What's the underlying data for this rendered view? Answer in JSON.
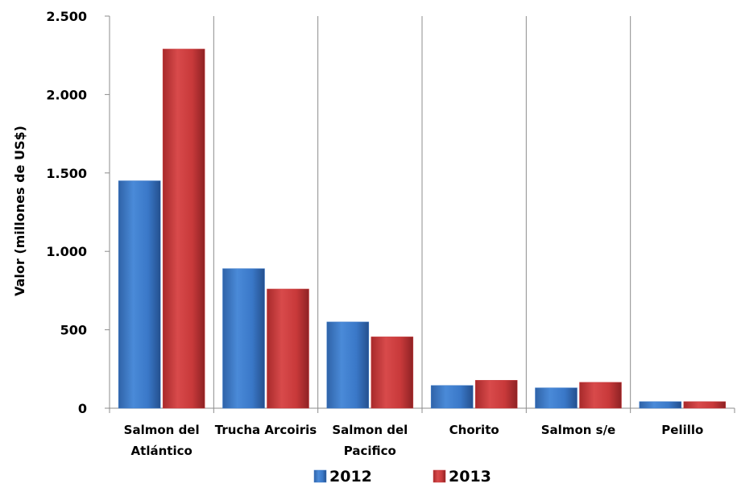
{
  "chart_data": {
    "type": "bar",
    "title": "",
    "xlabel": "",
    "ylabel": "Valor (millones de US$)",
    "ylim": [
      0,
      2500
    ],
    "yticks": [
      0,
      500,
      1000,
      1500,
      2000,
      2500
    ],
    "ytick_labels": [
      "0",
      "500",
      "1.000",
      "1.500",
      "2.000",
      "2.500"
    ],
    "categories": [
      [
        "Salmon del",
        "Atlántico"
      ],
      [
        "Trucha Arcoiris"
      ],
      [
        "Salmon del",
        "Pacifico"
      ],
      [
        "Chorito"
      ],
      [
        "Salmon s/e"
      ],
      [
        "Pelillo"
      ]
    ],
    "series": [
      {
        "name": "2012",
        "color": "#3a78c8",
        "values": [
          1450,
          890,
          550,
          145,
          130,
          42
        ]
      },
      {
        "name": "2013",
        "color": "#c8393a",
        "values": [
          2290,
          760,
          455,
          178,
          165,
          42
        ]
      }
    ],
    "grid": "vertical category separators",
    "legend": "bottom-center"
  }
}
